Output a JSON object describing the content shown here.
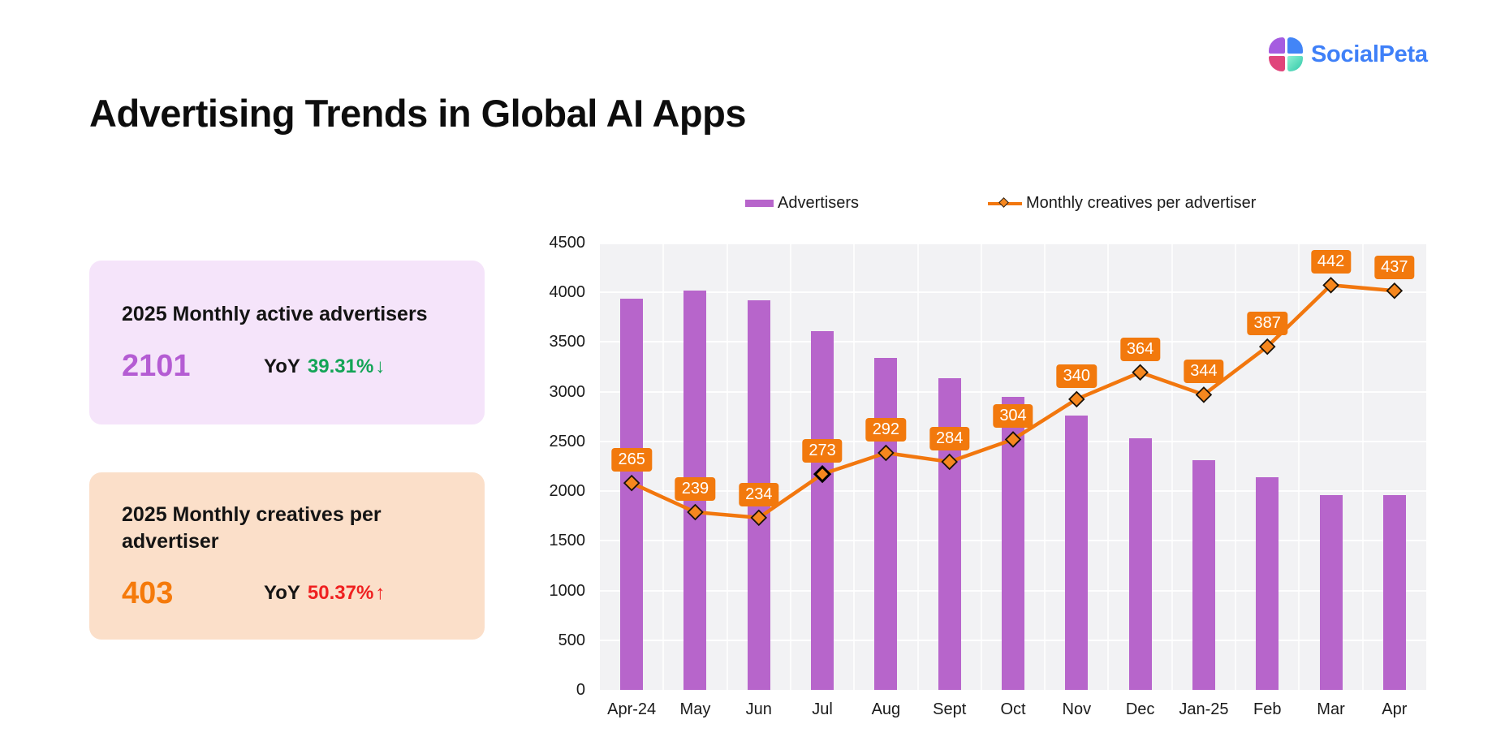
{
  "logo": {
    "text": "SocialPeta",
    "text_color": "#3F80F8",
    "quadrants": {
      "top_left": "#A55CE0",
      "top_right": "#4285F7",
      "bottom_left": "#E0457B",
      "bottom_right_start": "#8FF2D3",
      "bottom_right_end": "#2FC7A8"
    }
  },
  "title": "Advertising Trends in Global AI Apps",
  "cards": [
    {
      "title": "2025 Monthly active advertisers",
      "value": "2101",
      "value_color": "#B45CD3",
      "background": "#F5E4FA",
      "yoy_label": "YoY",
      "yoy_value": "39.31%",
      "yoy_arrow": "↓",
      "yoy_color": "#13A456",
      "direction": "down"
    },
    {
      "title": "2025 Monthly creatives per advertiser",
      "value": "403",
      "value_color": "#F57A0B",
      "background": "#FBDFC9",
      "yoy_label": "YoY",
      "yoy_value": "50.37%",
      "yoy_arrow": "↑",
      "yoy_color": "#EF2020",
      "direction": "up"
    }
  ],
  "chart_data": {
    "type": "combo_bar_line",
    "categories": [
      "Apr-24",
      "May",
      "Jun",
      "Jul",
      "Aug",
      "Sept",
      "Oct",
      "Nov",
      "Dec",
      "Jan-25",
      "Feb",
      "Mar",
      "Apr"
    ],
    "series": [
      {
        "name": "Advertisers",
        "type": "bar",
        "axis": "left",
        "color": "#B765CB",
        "values": [
          3940,
          4020,
          3920,
          3610,
          3340,
          3140,
          2950,
          2760,
          2530,
          2310,
          2140,
          1960,
          1960
        ]
      },
      {
        "name": "Monthly creatives per advertiser",
        "type": "line",
        "axis": "hidden_right",
        "color": "#F2770E",
        "marker": "diamond",
        "marker_fill": "#F6871E",
        "marker_stroke": "#1a1208",
        "label_bg": "#F2790D",
        "highlight_marker_index": 3,
        "values": [
          265,
          239,
          234,
          273,
          292,
          284,
          304,
          340,
          364,
          344,
          387,
          442,
          437
        ]
      }
    ],
    "left_axis": {
      "min": 0,
      "max": 4500,
      "step": 500
    },
    "hidden_right_axis": {
      "min": 80,
      "max": 480
    },
    "plot_background": "#F2F2F4",
    "gridlines": "horizontal and vertical, white, on gray plot",
    "legend_position": "top",
    "data_labels_series": "line"
  }
}
